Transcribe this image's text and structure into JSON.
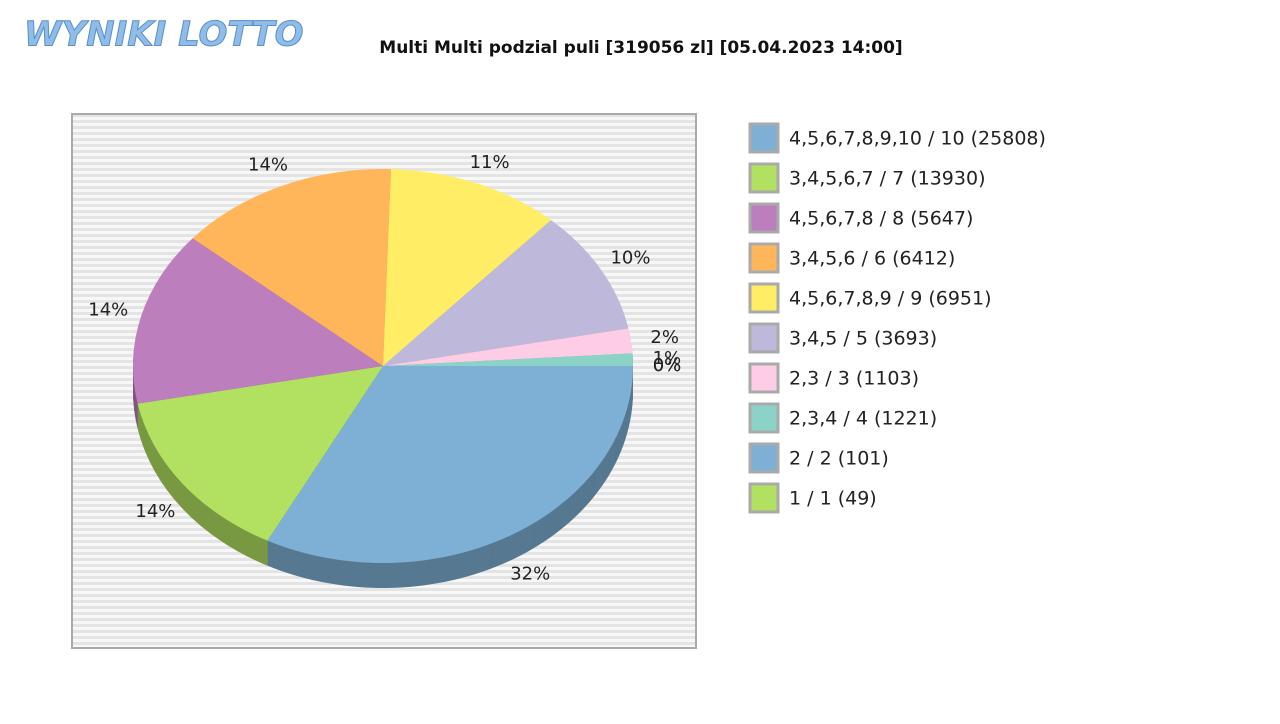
{
  "logo": "WYNIKI LOTTO",
  "chart_data": {
    "type": "pie",
    "title": "Multi Multi podzial puli [319056 zl] [05.04.2023 14:00]",
    "categories": [
      "4,5,6,7,8,9,10 / 10 (25808)",
      "3,4,5,6,7 / 7 (13930)",
      "4,5,6,7,8 / 8 (5647)",
      "3,4,5,6 / 6 (6412)",
      "4,5,6,7,8,9 / 9 (6951)",
      "3,4,5 / 5 (3693)",
      "2,3 / 3 (1103)",
      "2,3,4 / 4 (1221)",
      "2 / 2 (101)",
      "1 / 1 (49)"
    ],
    "values": [
      32,
      14,
      14,
      14,
      11,
      10,
      2,
      1,
      0,
      0
    ],
    "value_labels": [
      "32%",
      "14%",
      "14%",
      "14%",
      "11%",
      "10%",
      "2%",
      "1%",
      "0%",
      "0%"
    ],
    "colors": [
      "#7eb0d5",
      "#b2e061",
      "#bd7ebe",
      "#ffb55a",
      "#ffee65",
      "#beb9db",
      "#fdcce5",
      "#8bd3c7",
      "#7eb0d5",
      "#b2e061"
    ],
    "legend": "right"
  }
}
